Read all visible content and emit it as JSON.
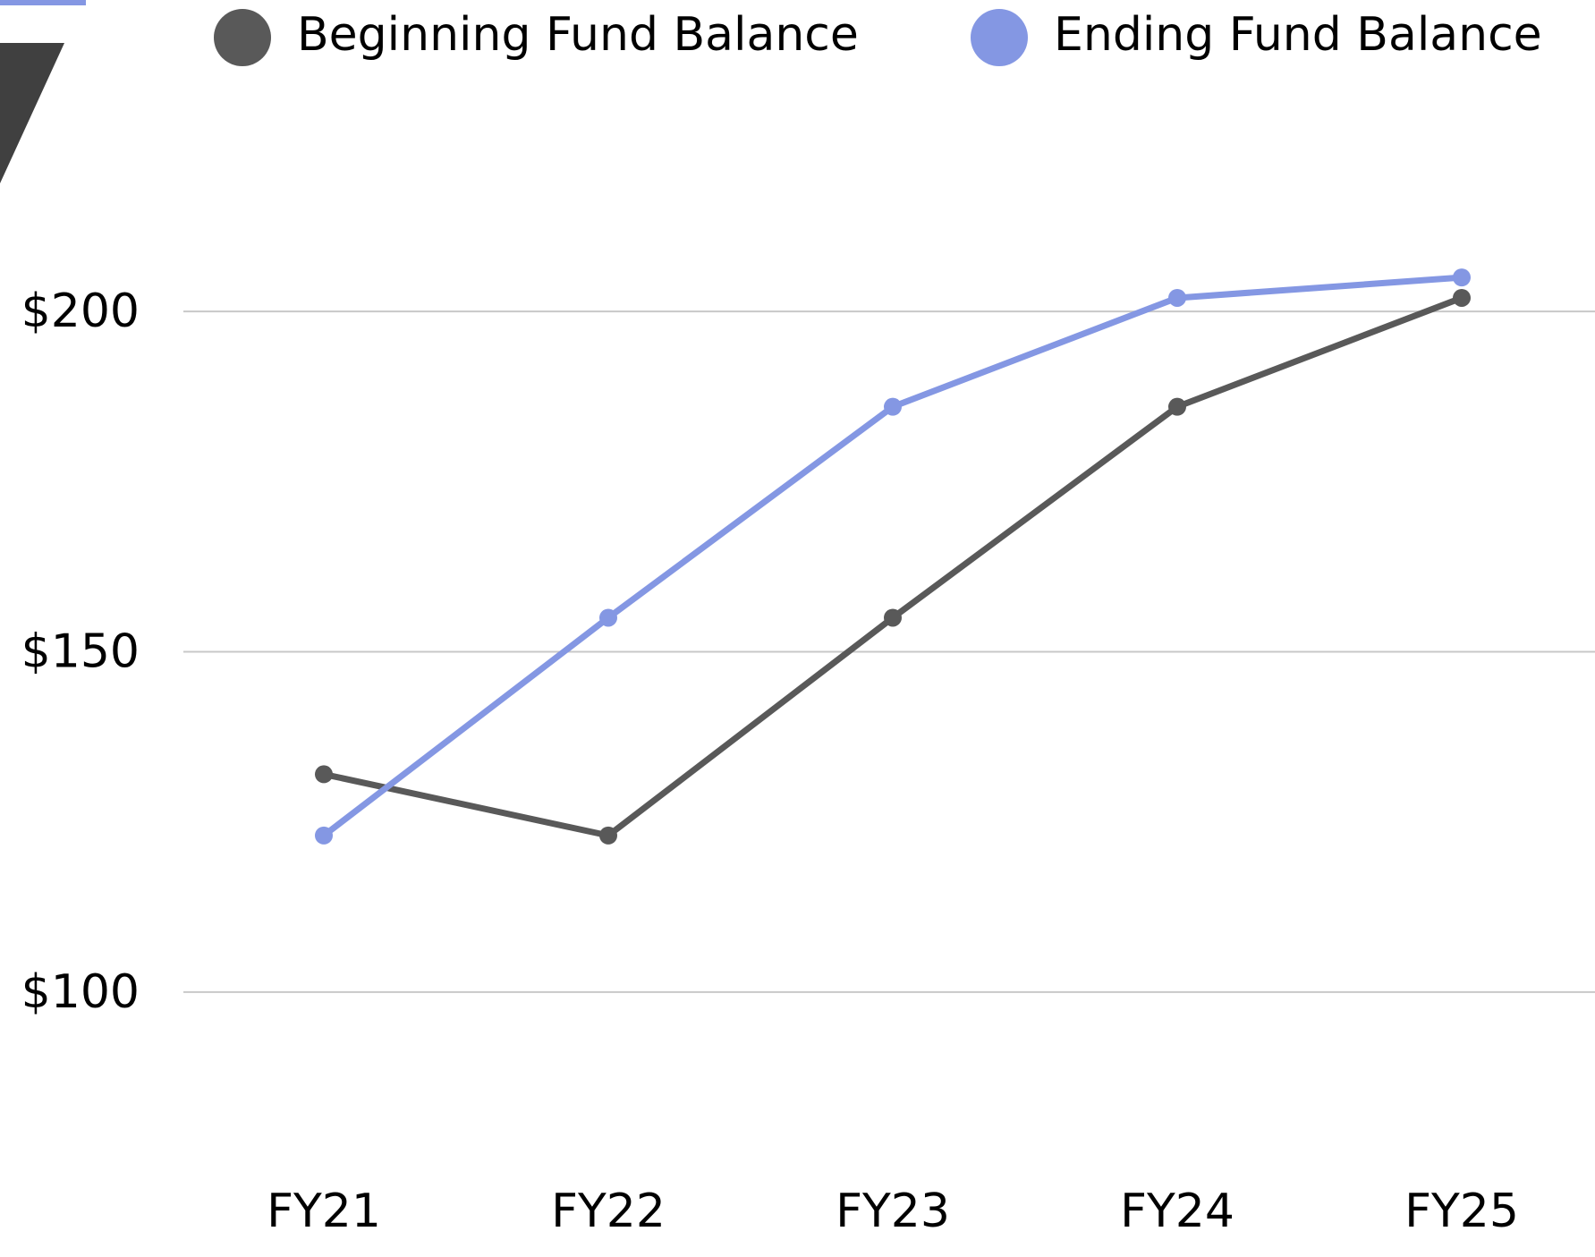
{
  "chart_data": {
    "type": "line",
    "categories": [
      "FY21",
      "FY22",
      "FY23",
      "FY24",
      "FY25"
    ],
    "series": [
      {
        "name": "Beginning Fund Balance",
        "color": "#595959",
        "values": [
          132,
          123,
          155,
          186,
          202
        ]
      },
      {
        "name": "Ending Fund Balance",
        "color": "#8497e3",
        "values": [
          123,
          155,
          186,
          202,
          205
        ]
      }
    ],
    "ylim": [
      75,
      225
    ],
    "yticks": [
      {
        "value": 100,
        "label": "$100"
      },
      {
        "value": 150,
        "label": "$150"
      },
      {
        "value": 200,
        "label": "$200"
      }
    ],
    "grid": true
  }
}
